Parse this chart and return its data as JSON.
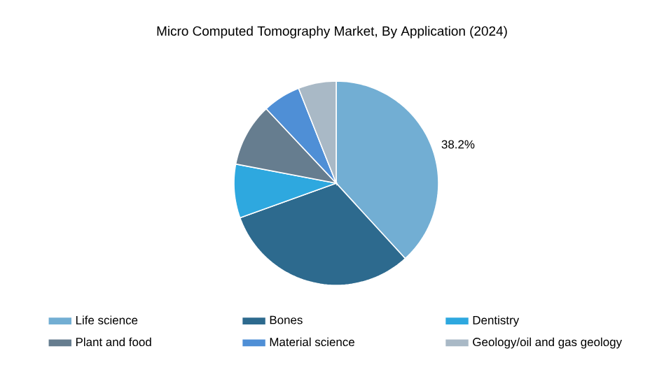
{
  "chart_data": {
    "type": "pie",
    "title": "Micro Computed Tomography Market, By Application (2024)",
    "categories": [
      "Life science",
      "Bones",
      "Dentistry",
      "Plant and food",
      "Material science",
      "Geology/oil and gas geology"
    ],
    "values": [
      38.2,
      31.3,
      8.5,
      10.0,
      6.0,
      6.0
    ],
    "colors": [
      "#72aed3",
      "#2d6a8e",
      "#2ea8df",
      "#667d8f",
      "#4f8fd6",
      "#a9b9c6"
    ],
    "value_labels": [
      "38.2%",
      null,
      null,
      null,
      null,
      null
    ],
    "legend": "bottom"
  }
}
